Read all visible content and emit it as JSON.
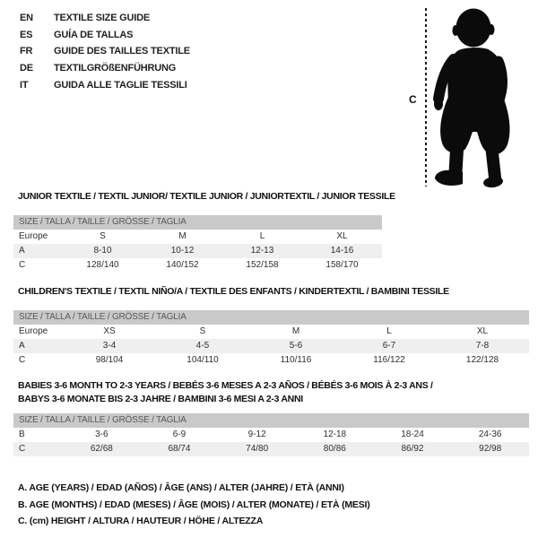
{
  "languages": [
    {
      "code": "EN",
      "label": "TEXTILE SIZE GUIDE"
    },
    {
      "code": "ES",
      "label": "GUÍA DE TALLAS"
    },
    {
      "code": "FR",
      "label": "GUIDE DES TAILLES TEXTILE"
    },
    {
      "code": "DE",
      "label": "TEXTILGRÖßENFÜHRUNG"
    },
    {
      "code": "IT",
      "label": "GUIDA ALLE TAGLIE TESSILI"
    }
  ],
  "figure": {
    "height_label": "C",
    "silhouette": "toddler-silhouette"
  },
  "tables": [
    {
      "title_lines": [
        "JUNIOR TEXTILE / TEXTIL JUNIOR/ TEXTILE JUNIOR / JUNIORTEXTIL / JUNIOR TESSILE"
      ],
      "size_header": "SIZE / TALLA / TAILLE / GRÖSSE / TAGLIA",
      "rows": [
        {
          "label": "Europe",
          "cells": [
            "S",
            "M",
            "L",
            "XL"
          ],
          "shaded": false
        },
        {
          "label": "A",
          "cells": [
            "8-10",
            "10-12",
            "12-13",
            "14-16"
          ],
          "shaded": true
        },
        {
          "label": "C",
          "cells": [
            "128/140",
            "140/152",
            "152/158",
            "158/170"
          ],
          "shaded": false
        }
      ]
    },
    {
      "title_lines": [
        "CHILDREN'S TEXTILE / TEXTIL NIÑO/A / TEXTILE DES ENFANTS / KINDERTEXTIL / BAMBINI TESSILE"
      ],
      "size_header": "SIZE / TALLA / TAILLE / GRÖSSE / TAGLIA",
      "rows": [
        {
          "label": "Europe",
          "cells": [
            "XS",
            "S",
            "M",
            "L",
            "XL"
          ],
          "shaded": false
        },
        {
          "label": "A",
          "cells": [
            "3-4",
            "4-5",
            "5-6",
            "6-7",
            "7-8"
          ],
          "shaded": true
        },
        {
          "label": "C",
          "cells": [
            "98/104",
            "104/110",
            "110/116",
            "116/122",
            "122/128"
          ],
          "shaded": false
        }
      ]
    },
    {
      "title_lines": [
        "BABIES 3-6 MONTH TO 2-3 YEARS / BEBÉS 3-6 MESES A 2-3 AÑOS / BÉBÉS 3-6 MOIS À 2-3 ANS /",
        "BABYS 3-6 MONATE BIS 2-3 JAHRE / BAMBINI 3-6 MESI A 2-3 ANNI"
      ],
      "size_header": "SIZE / TALLA / TAILLE / GRÖSSE / TAGLIA",
      "rows": [
        {
          "label": "B",
          "cells": [
            "3-6",
            "6-9",
            "9-12",
            "12-18",
            "18-24",
            "24-36"
          ],
          "shaded": false
        },
        {
          "label": "C",
          "cells": [
            "62/68",
            "68/74",
            "74/80",
            "80/86",
            "86/92",
            "92/98"
          ],
          "shaded": true
        }
      ]
    }
  ],
  "footnotes": [
    "A. AGE (YEARS) / EDAD (AÑOS) / ÂGE (ANS) / ALTER (JAHRE) / ETÀ (ANNI)",
    "B. AGE (MONTHS) / EDAD (MESES) / ÂGE (MOIS) / ALTER (MONATE) / ETÀ (MESI)",
    "C. (cm) HEIGHT / ALTURA / HAUTEUR / HÖHE / ALTEZZA"
  ],
  "colors": {
    "header_bar_bg": "#c9c9c9",
    "header_bar_text": "#58595b",
    "shaded_row": "#efefef",
    "text": "#231f20"
  }
}
